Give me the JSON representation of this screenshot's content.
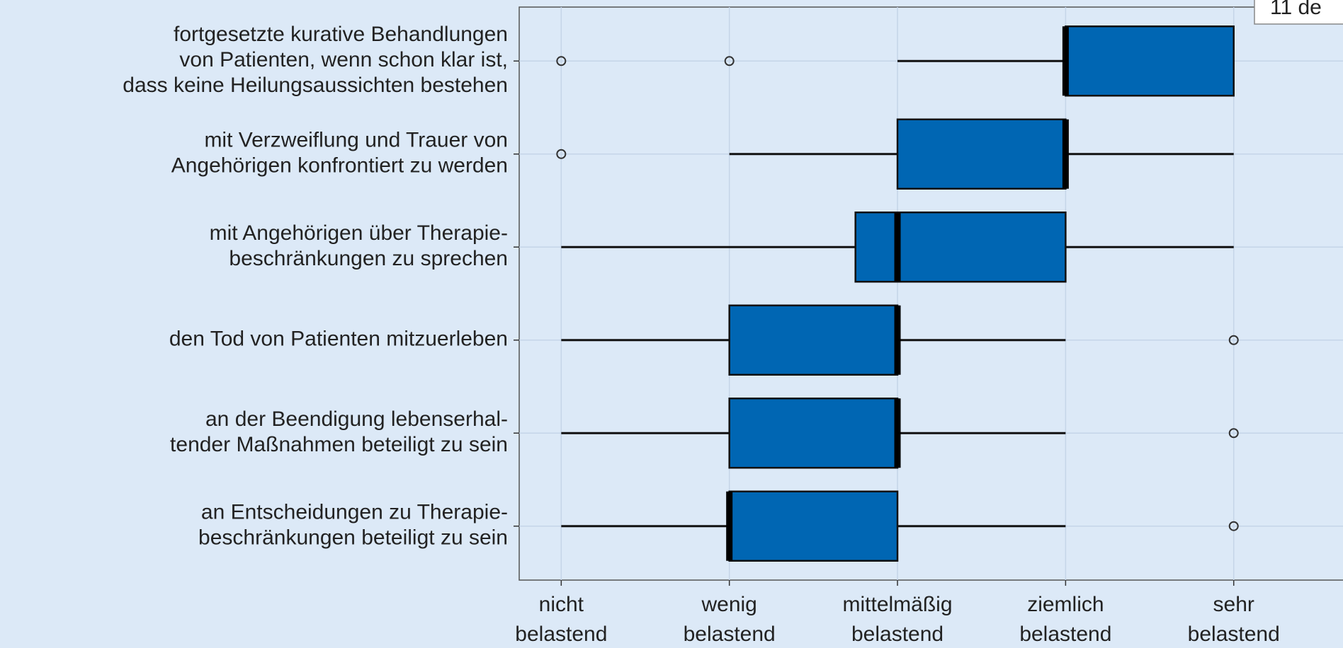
{
  "chart_data": {
    "type": "boxplot",
    "orientation": "horizontal",
    "annotation": "11 de",
    "categories": [
      [
        "fortgesetzte kurative Behandlungen",
        "von Patienten, wenn schon klar ist,",
        "dass keine Heilungsaussichten bestehen"
      ],
      [
        "mit Verzweiflung und Trauer von",
        "Angehörigen konfrontiert zu werden"
      ],
      [
        "mit Angehörigen über Therapie-",
        "beschränkungen zu sprechen"
      ],
      [
        "den Tod von Patienten mitzuerleben"
      ],
      [
        "an der Beendigung lebenserhal-",
        "tender Maßnahmen beteiligt zu sein"
      ],
      [
        "an Entscheidungen zu Therapie-",
        "beschränkungen beteiligt zu sein"
      ]
    ],
    "color": "#0066b3",
    "boxes": [
      {
        "whisker_low": 3,
        "q1": 4,
        "median": 4,
        "q3": 5,
        "whisker_high": 5,
        "outliers": [
          1,
          2
        ]
      },
      {
        "whisker_low": 2,
        "q1": 3,
        "median": 4,
        "q3": 4,
        "whisker_high": 5,
        "outliers": [
          1
        ]
      },
      {
        "whisker_low": 1,
        "q1": 2.75,
        "median": 3,
        "q3": 4,
        "whisker_high": 5,
        "outliers": []
      },
      {
        "whisker_low": 1,
        "q1": 2,
        "median": 3,
        "q3": 3,
        "whisker_high": 4,
        "outliers": [
          5
        ]
      },
      {
        "whisker_low": 1,
        "q1": 2,
        "median": 3,
        "q3": 3,
        "whisker_high": 4,
        "outliers": [
          5
        ]
      },
      {
        "whisker_low": 1,
        "q1": 2,
        "median": 2,
        "q3": 3,
        "whisker_high": 4,
        "outliers": [
          5
        ]
      }
    ],
    "xlim": [
      0.75,
      5.65
    ],
    "xticks": [
      {
        "value": 1,
        "label": [
          "nicht",
          "belastend"
        ]
      },
      {
        "value": 2,
        "label": [
          "wenig",
          "belastend"
        ]
      },
      {
        "value": 3,
        "label": [
          "mittelmäßig",
          "belastend"
        ]
      },
      {
        "value": 4,
        "label": [
          "ziemlich",
          "belastend"
        ]
      },
      {
        "value": 5,
        "label": [
          "sehr",
          "belastend"
        ]
      }
    ],
    "grid": true
  }
}
